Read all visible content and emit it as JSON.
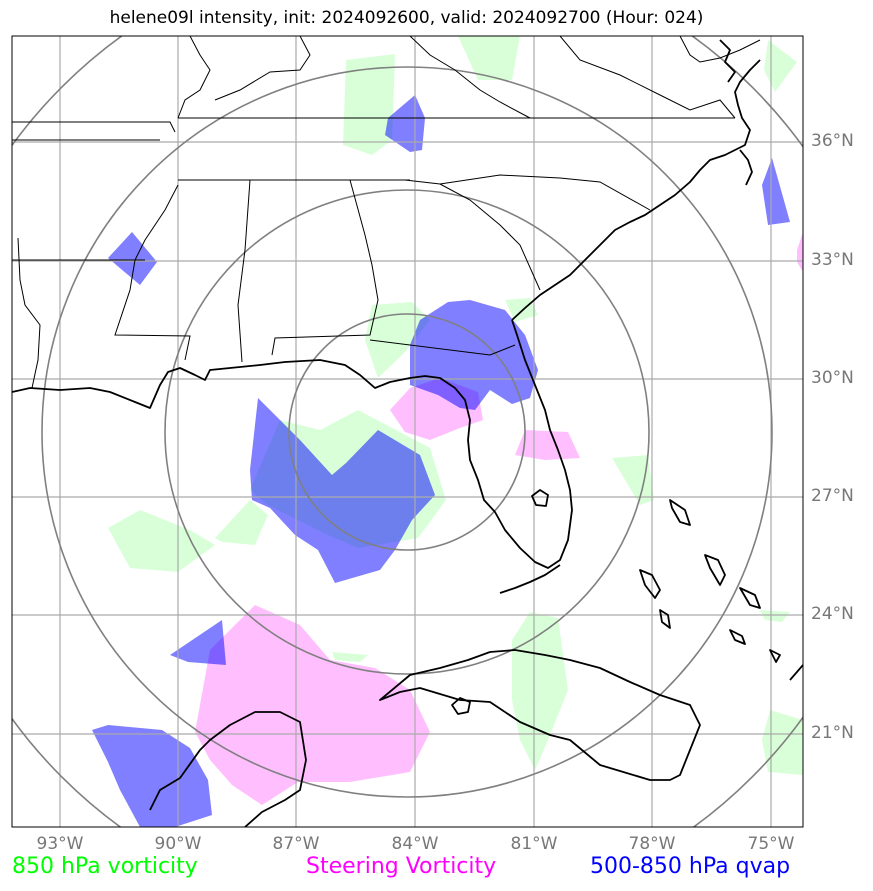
{
  "title": "helene09l intensity, init: 2024092600, valid: 2024092700 (Hour: 024)",
  "lat_labels": [
    "36°N",
    "33°N",
    "30°N",
    "27°N",
    "24°N",
    "21°N"
  ],
  "lon_labels": [
    "93°W",
    "90°W",
    "87°W",
    "84°W",
    "81°W",
    "78°W",
    "75°W"
  ],
  "legend": {
    "vort850": {
      "label": "850 hPa vorticity",
      "color": "#00ff00"
    },
    "steering": {
      "label": "Steering Vorticity",
      "color": "#ff00ff"
    },
    "qvap": {
      "label": "500-850 hPa qvap",
      "color": "#0000ff"
    }
  },
  "colors": {
    "vort850_fill": "#ccffcc",
    "steering_fill": "#ffaaff",
    "qvap_fill": "#0000ff",
    "grid": "#aaaaaa",
    "range_rings": "#808080",
    "coastline": "#000000"
  }
}
